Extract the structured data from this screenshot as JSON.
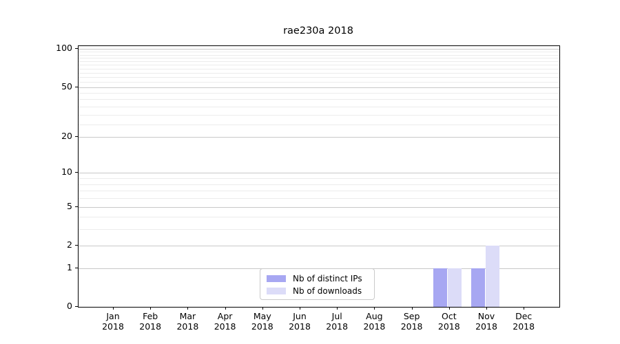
{
  "chart_data": {
    "type": "bar",
    "title": "rae230a 2018",
    "categories": [
      {
        "month": "Jan",
        "year": "2018"
      },
      {
        "month": "Feb",
        "year": "2018"
      },
      {
        "month": "Mar",
        "year": "2018"
      },
      {
        "month": "Apr",
        "year": "2018"
      },
      {
        "month": "May",
        "year": "2018"
      },
      {
        "month": "Jun",
        "year": "2018"
      },
      {
        "month": "Jul",
        "year": "2018"
      },
      {
        "month": "Aug",
        "year": "2018"
      },
      {
        "month": "Sep",
        "year": "2018"
      },
      {
        "month": "Oct",
        "year": "2018"
      },
      {
        "month": "Nov",
        "year": "2018"
      },
      {
        "month": "Dec",
        "year": "2018"
      }
    ],
    "series": [
      {
        "name": "Nb of distinct IPs",
        "color": "#a7a7f2",
        "values": [
          0,
          0,
          0,
          0,
          0,
          0,
          0,
          0,
          0,
          1,
          1,
          0
        ]
      },
      {
        "name": "Nb of downloads",
        "color": "#dcdcf8",
        "values": [
          0,
          0,
          0,
          0,
          0,
          0,
          0,
          0,
          0,
          1,
          2,
          0
        ]
      }
    ],
    "y_axis": {
      "scale": "log10(1+v)",
      "tick_labels": [
        0,
        1,
        2,
        5,
        10,
        20,
        50,
        100
      ],
      "minor_gridlines": [
        3,
        4,
        6,
        7,
        8,
        9,
        25,
        30,
        35,
        40,
        45,
        55,
        60,
        65,
        70,
        75,
        80,
        85,
        90,
        95
      ],
      "top_value": 105
    },
    "x_axis": {
      "label_lines": 2
    },
    "legend": {
      "position": "bottom-center",
      "frame": true
    },
    "grid": true
  }
}
